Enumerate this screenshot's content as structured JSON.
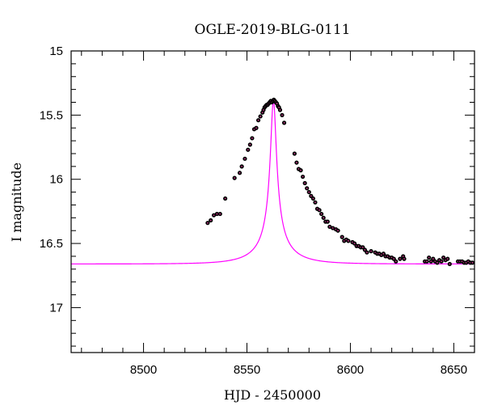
{
  "chart_data": {
    "type": "scatter",
    "title": "OGLE-2019-BLG-0111",
    "xlabel": "HJD - 2450000",
    "ylabel": "I magnitude",
    "xlim": [
      8465,
      8660
    ],
    "ylim": [
      17.35,
      15.0
    ],
    "y_inverted": true,
    "x_ticks": [
      8500,
      8550,
      8600,
      8650
    ],
    "y_ticks": [
      15,
      15.5,
      16,
      16.5,
      17
    ],
    "x_tick_labels": [
      "8500",
      "8550",
      "8600",
      "8650"
    ],
    "y_tick_labels": [
      "15",
      "15.5",
      "16",
      "16.5",
      "17"
    ],
    "grid": false,
    "colors": {
      "model": "#ff00ff",
      "points": "#000000",
      "point_inner": "#b0307a"
    },
    "model": {
      "t0": 8562.8,
      "u0": 0.075,
      "tE": 19.0,
      "baseline": 16.66,
      "peak": 15.38
    },
    "series": [
      {
        "x": [
          8531.0,
          8532.5,
          8534.0,
          8535.5,
          8537.0,
          8539.5,
          8544.0,
          8546.5,
          8547.5,
          8549.0,
          8550.5,
          8551.5,
          8552.5,
          8553.5,
          8554.5,
          8555.5,
          8556.5,
          8557.5,
          8558.0,
          8558.5,
          8559.0,
          8559.5,
          8560.0,
          8560.5,
          8561.0,
          8561.5,
          8562.0,
          8562.5,
          8563.0,
          8563.5,
          8564.0,
          8564.5,
          8565.0,
          8565.5,
          8566.0,
          8567.0,
          8568.0,
          8573.0,
          8574.0,
          8575.0,
          8576.0,
          8577.0,
          8578.0,
          8579.0,
          8580.0,
          8581.0,
          8582.0,
          8583.0,
          8584.0,
          8585.0,
          8586.0,
          8587.0,
          8588.0,
          8589.0,
          8590.0,
          8591.5,
          8593.0,
          8594.0,
          8596.0,
          8597.0,
          8598.0,
          8599.0,
          8601.0,
          8602.0,
          8603.0,
          8604.0,
          8605.0,
          8606.0,
          8607.0,
          8608.0,
          8610.0,
          8612.0,
          8613.0,
          8614.0,
          8615.0,
          8616.0,
          8617.0,
          8618.0,
          8619.0,
          8620.0,
          8621.0,
          8622.0,
          8624.0,
          8625.5,
          8626.0,
          8636.0,
          8637.0,
          8638.0,
          8639.0,
          8640.0,
          8641.0,
          8642.0,
          8643.0,
          8644.0,
          8645.0,
          8646.0,
          8647.0,
          8648.0,
          8652.0,
          8653.0,
          8654.0,
          8655.0,
          8656.0,
          8657.0,
          8658.0,
          8659.0
        ],
        "y": [
          16.34,
          16.32,
          16.28,
          16.27,
          16.27,
          16.15,
          15.99,
          15.95,
          15.9,
          15.84,
          15.77,
          15.73,
          15.68,
          15.61,
          15.6,
          15.54,
          15.51,
          15.48,
          15.46,
          15.44,
          15.43,
          15.42,
          15.42,
          15.41,
          15.4,
          15.39,
          15.4,
          15.39,
          15.38,
          15.39,
          15.4,
          15.41,
          15.43,
          15.44,
          15.46,
          15.5,
          15.56,
          15.8,
          15.87,
          15.92,
          15.93,
          15.98,
          16.03,
          16.07,
          16.1,
          16.13,
          16.15,
          16.18,
          16.23,
          16.24,
          16.27,
          16.3,
          16.33,
          16.33,
          16.37,
          16.38,
          16.39,
          16.4,
          16.45,
          16.48,
          16.47,
          16.48,
          16.49,
          16.5,
          16.52,
          16.52,
          16.53,
          16.53,
          16.55,
          16.57,
          16.56,
          16.57,
          16.58,
          16.58,
          16.59,
          16.58,
          16.6,
          16.6,
          16.61,
          16.61,
          16.62,
          16.64,
          16.62,
          16.6,
          16.62,
          16.64,
          16.64,
          16.61,
          16.64,
          16.62,
          16.64,
          16.65,
          16.63,
          16.64,
          16.61,
          16.63,
          16.62,
          16.66,
          16.64,
          16.64,
          16.64,
          16.65,
          16.65,
          16.64,
          16.65,
          16.65
        ]
      }
    ]
  }
}
